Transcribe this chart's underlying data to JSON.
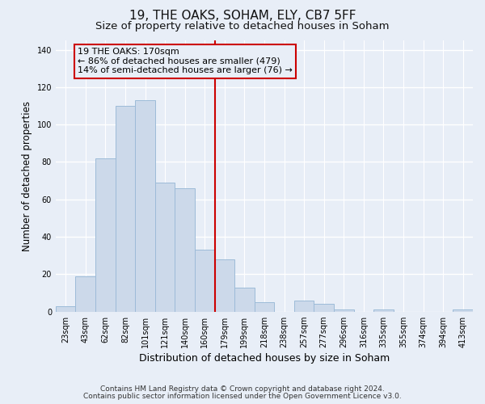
{
  "title": "19, THE OAKS, SOHAM, ELY, CB7 5FF",
  "subtitle": "Size of property relative to detached houses in Soham",
  "xlabel": "Distribution of detached houses by size in Soham",
  "ylabel": "Number of detached properties",
  "bar_labels": [
    "23sqm",
    "43sqm",
    "62sqm",
    "82sqm",
    "101sqm",
    "121sqm",
    "140sqm",
    "160sqm",
    "179sqm",
    "199sqm",
    "218sqm",
    "238sqm",
    "257sqm",
    "277sqm",
    "296sqm",
    "316sqm",
    "335sqm",
    "355sqm",
    "374sqm",
    "394sqm",
    "413sqm"
  ],
  "bar_values": [
    3,
    19,
    82,
    110,
    113,
    69,
    66,
    33,
    28,
    13,
    5,
    0,
    6,
    4,
    1,
    0,
    1,
    0,
    0,
    0,
    1
  ],
  "bar_color": "#ccd9ea",
  "bar_edgecolor": "#9dbbd8",
  "vline_x": 8,
  "vline_color": "#cc0000",
  "annotation_title": "19 THE OAKS: 170sqm",
  "annotation_line1": "← 86% of detached houses are smaller (479)",
  "annotation_line2": "14% of semi-detached houses are larger (76) →",
  "annotation_box_edgecolor": "#cc0000",
  "ylim": [
    0,
    145
  ],
  "yticks": [
    0,
    20,
    40,
    60,
    80,
    100,
    120,
    140
  ],
  "footer1": "Contains HM Land Registry data © Crown copyright and database right 2024.",
  "footer2": "Contains public sector information licensed under the Open Government Licence v3.0.",
  "bg_color": "#e8eef7",
  "grid_color": "#ffffff",
  "title_fontsize": 11,
  "subtitle_fontsize": 9.5,
  "xlabel_fontsize": 9,
  "ylabel_fontsize": 8.5,
  "tick_fontsize": 7,
  "footer_fontsize": 6.5
}
